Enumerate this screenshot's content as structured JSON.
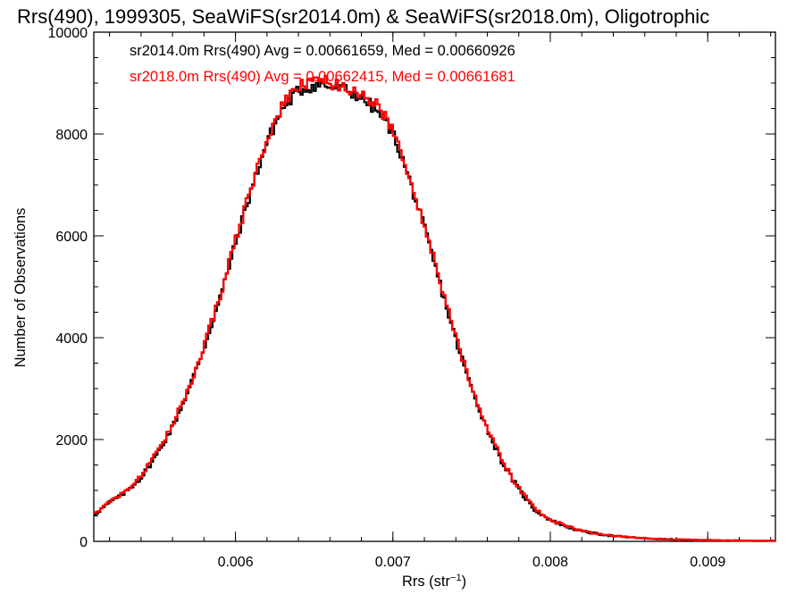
{
  "chart_data": {
    "type": "line",
    "title": "Rrs(490), 1999305, SeaWiFS(sr2014.0m) & SeaWiFS(sr2018.0m), Oligotrophic",
    "xlabel_base": "Rrs (str",
    "xlabel_sup": "−1",
    "xlabel_end": ")",
    "ylabel": "Number of Observations",
    "xlim": [
      0.0051,
      0.00943
    ],
    "ylim": [
      0,
      10000
    ],
    "x_ticks": [
      0.006,
      0.007,
      0.008,
      0.009
    ],
    "x_tick_labels": [
      "0.006",
      "0.007",
      "0.008",
      "0.009"
    ],
    "y_ticks": [
      0,
      2000,
      4000,
      6000,
      8000,
      10000
    ],
    "y_tick_labels": [
      "0",
      "2000",
      "4000",
      "6000",
      "8000",
      "10000"
    ],
    "grid": false,
    "annotations": [
      {
        "text": "sr2014.0m Rrs(490) Avg = 0.00661659, Med = 0.00660926",
        "color": "#000000"
      },
      {
        "text": "sr2018.0m Rrs(490) Avg = 0.00662415, Med = 0.00661681",
        "color": "#ff0000"
      }
    ],
    "x": [
      0.0051,
      0.0052,
      0.0053,
      0.0054,
      0.0055,
      0.0056,
      0.0057,
      0.0058,
      0.0059,
      0.006,
      0.0061,
      0.0062,
      0.0063,
      0.0064,
      0.0065,
      0.00655,
      0.0066,
      0.0067,
      0.0068,
      0.0069,
      0.007,
      0.0071,
      0.0072,
      0.0073,
      0.0074,
      0.0075,
      0.0076,
      0.0077,
      0.0078,
      0.0079,
      0.008,
      0.0081,
      0.0082,
      0.0083,
      0.0084,
      0.0085,
      0.0086,
      0.0087,
      0.0088,
      0.0089,
      0.009,
      0.0091,
      0.0092,
      0.0093,
      0.00943
    ],
    "series": [
      {
        "name": "sr2014.0m",
        "color": "#000000",
        "values": [
          520,
          760,
          960,
          1250,
          1700,
          2250,
          2950,
          3800,
          4750,
          5850,
          6900,
          7850,
          8500,
          8850,
          8950,
          8970,
          8920,
          8870,
          8720,
          8450,
          8050,
          7150,
          6150,
          5050,
          3950,
          3000,
          2200,
          1520,
          1020,
          620,
          420,
          290,
          200,
          145,
          105,
          80,
          60,
          45,
          35,
          28,
          22,
          18,
          15,
          12,
          10
        ]
      },
      {
        "name": "sr2018.0m",
        "color": "#ff0000",
        "values": [
          540,
          780,
          980,
          1280,
          1730,
          2280,
          2980,
          3840,
          4800,
          5900,
          6950,
          7900,
          8560,
          8920,
          9050,
          9070,
          9000,
          8930,
          8800,
          8550,
          8130,
          7230,
          6220,
          5110,
          4000,
          3040,
          2230,
          1550,
          1040,
          640,
          430,
          300,
          210,
          150,
          110,
          82,
          62,
          47,
          37,
          29,
          23,
          19,
          15,
          12,
          10
        ]
      }
    ]
  }
}
